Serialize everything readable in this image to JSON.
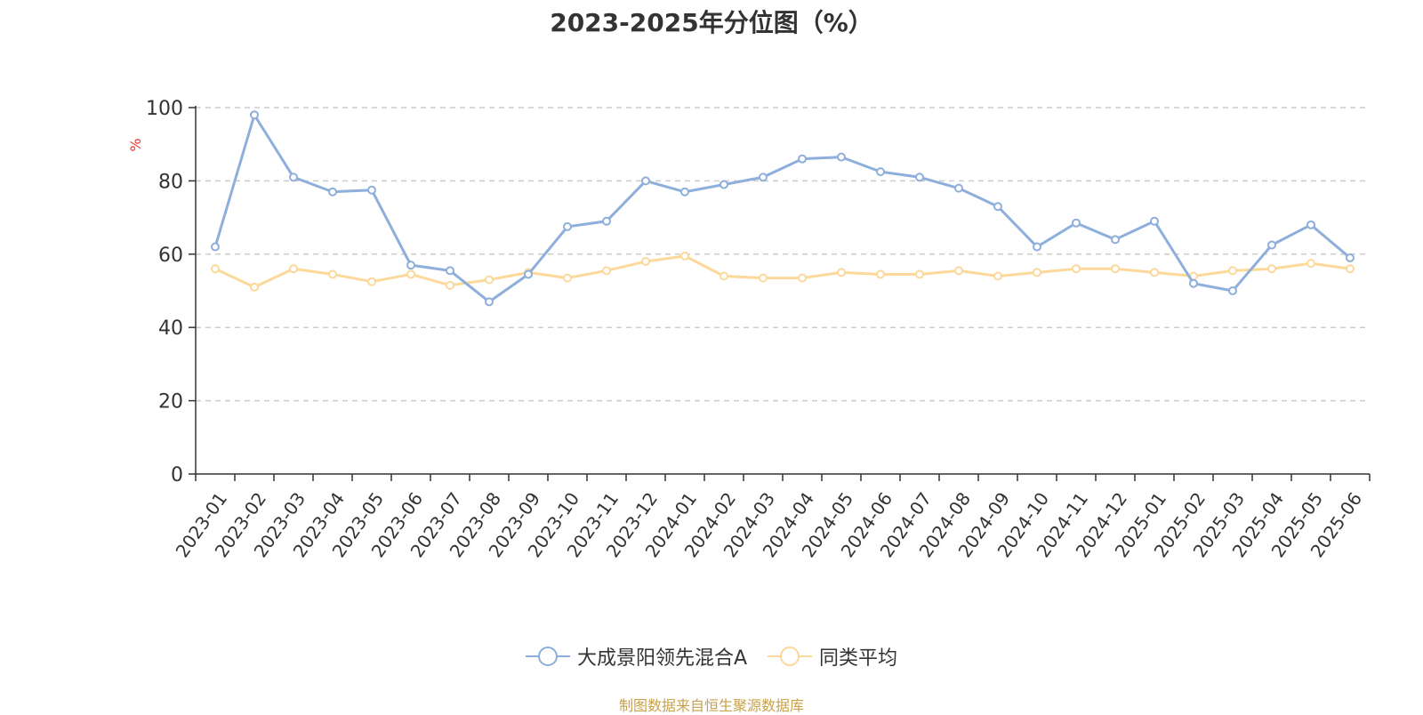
{
  "chart_data": {
    "type": "line",
    "title": "2023-2025年分位图（%）",
    "ylabel": "%",
    "xlabel": "",
    "ylim": [
      0,
      100
    ],
    "yticks": [
      0,
      20,
      40,
      60,
      80,
      100
    ],
    "grid": true,
    "legend_position": "bottom",
    "categories": [
      "2023-01",
      "2023-02",
      "2023-03",
      "2023-04",
      "2023-05",
      "2023-06",
      "2023-07",
      "2023-08",
      "2023-09",
      "2023-10",
      "2023-11",
      "2023-12",
      "2024-01",
      "2024-02",
      "2024-03",
      "2024-04",
      "2024-05",
      "2024-06",
      "2024-07",
      "2024-08",
      "2024-09",
      "2024-10",
      "2024-11",
      "2024-12",
      "2025-01",
      "2025-02",
      "2025-03",
      "2025-04",
      "2025-05",
      "2025-06"
    ],
    "series": [
      {
        "name": "大成景阳领先混合A",
        "color": "#8eaedb",
        "values": [
          62,
          98,
          81,
          77,
          77.5,
          57,
          55.5,
          47,
          54.5,
          67.5,
          69,
          80,
          77,
          79,
          81,
          86,
          86.5,
          82.5,
          81,
          78,
          73,
          62,
          68.5,
          64,
          69,
          52,
          50,
          62.5,
          68,
          59
        ]
      },
      {
        "name": "同类平均",
        "color": "#fcd99a",
        "values": [
          56,
          51,
          56,
          54.5,
          52.5,
          54.5,
          51.5,
          53,
          55,
          53.5,
          55.5,
          58,
          59.5,
          54,
          53.5,
          53.5,
          55,
          54.5,
          54.5,
          55.5,
          54,
          55,
          56,
          56,
          55,
          54,
          55.5,
          56,
          57.5,
          56
        ]
      }
    ]
  },
  "footer": "制图数据来自恒生聚源数据库"
}
